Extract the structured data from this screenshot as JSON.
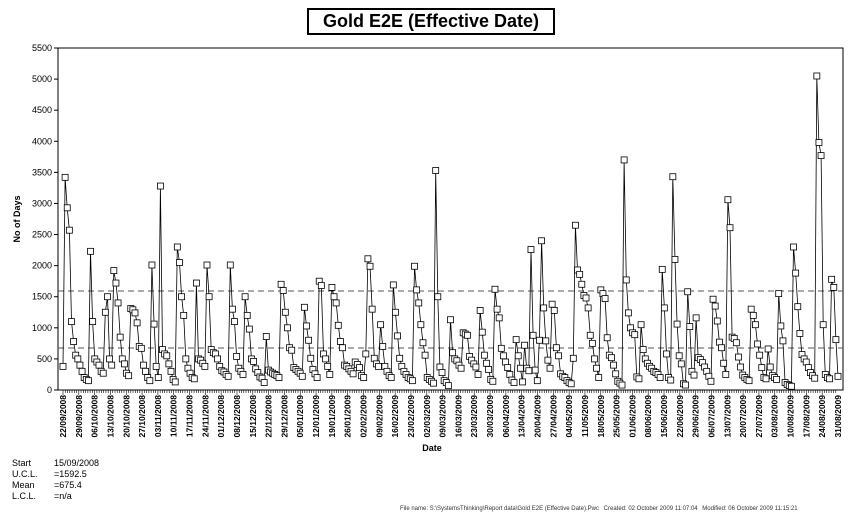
{
  "chart_data": {
    "type": "line",
    "title": "Gold E2E (Effective Date)",
    "xlabel": "Date",
    "ylabel": "No of Days",
    "ylim": [
      0,
      5500
    ],
    "yticks": [
      0,
      500,
      1000,
      1500,
      2000,
      2500,
      3000,
      3500,
      4000,
      4500,
      5000,
      5500
    ],
    "ucl": 1592.5,
    "mean": 675.4,
    "x_tick_labels": [
      "22/09/2008",
      "29/09/2008",
      "06/10/2008",
      "13/10/2008",
      "20/10/2008",
      "27/10/2008",
      "03/11/2008",
      "10/11/2008",
      "17/11/2008",
      "24/11/2008",
      "01/12/2008",
      "08/12/2008",
      "15/12/2008",
      "22/12/2008",
      "29/12/2008",
      "05/01/2009",
      "12/01/2009",
      "19/01/2009",
      "26/01/2009",
      "02/02/2009",
      "09/02/2009",
      "16/02/2009",
      "23/02/2009",
      "02/03/2009",
      "09/03/2009",
      "16/03/2009",
      "23/03/2009",
      "30/03/2009",
      "06/04/2009",
      "13/04/2009",
      "20/04/2009",
      "27/04/2009",
      "04/05/2009",
      "11/05/2009",
      "18/05/2009",
      "25/05/2009",
      "01/06/2009",
      "08/06/2009",
      "15/06/2009",
      "22/06/2009",
      "29/06/2009",
      "06/07/2009",
      "13/07/2009",
      "20/07/2009",
      "27/07/2009",
      "03/08/2009",
      "10/08/2009",
      "17/08/2009",
      "24/08/2009",
      "31/08/2009"
    ],
    "series": [
      {
        "name": "No of Days",
        "values": [
          380,
          3420,
          2930,
          2570,
          1100,
          780,
          560,
          500,
          400,
          300,
          200,
          170,
          150,
          2230,
          1100,
          500,
          450,
          400,
          300,
          270,
          1250,
          1500,
          500,
          400,
          1920,
          1720,
          1400,
          850,
          500,
          420,
          270,
          230,
          1310,
          1290,
          1240,
          1080,
          700,
          670,
          400,
          300,
          200,
          150,
          2010,
          1060,
          380,
          200,
          3280,
          650,
          580,
          550,
          420,
          300,
          170,
          130,
          2300,
          2050,
          1500,
          1200,
          500,
          350,
          270,
          200,
          180,
          1720,
          500,
          480,
          430,
          380,
          2010,
          1500,
          650,
          600,
          580,
          500,
          380,
          310,
          290,
          250,
          220,
          2010,
          1300,
          1100,
          540,
          350,
          300,
          250,
          1500,
          1200,
          980,
          500,
          460,
          340,
          280,
          210,
          190,
          120,
          860,
          320,
          290,
          270,
          250,
          230,
          200,
          1700,
          1600,
          1250,
          1000,
          680,
          640,
          360,
          330,
          300,
          270,
          220,
          1330,
          1030,
          800,
          510,
          330,
          260,
          200,
          1750,
          1680,
          580,
          500,
          380,
          250,
          1650,
          1500,
          1400,
          1040,
          780,
          680,
          400,
          380,
          340,
          300,
          260,
          450,
          410,
          360,
          230,
          200,
          580,
          2110,
          1990,
          1300,
          510,
          420,
          380,
          1050,
          700,
          380,
          300,
          230,
          200,
          1690,
          1250,
          870,
          510,
          380,
          300,
          250,
          200,
          180,
          150,
          1990,
          1610,
          1400,
          1050,
          760,
          560,
          200,
          170,
          140,
          110,
          3530,
          1500,
          370,
          280,
          150,
          120,
          70,
          1130,
          600,
          500,
          470,
          400,
          350,
          920,
          900,
          880,
          540,
          480,
          420,
          370,
          250,
          1280,
          930,
          560,
          430,
          330,
          170,
          140,
          1620,
          1300,
          1160,
          670,
          550,
          450,
          360,
          250,
          160,
          120,
          810,
          550,
          350,
          130,
          720,
          350,
          310,
          2260,
          880,
          320,
          150,
          800,
          2400,
          1320,
          790,
          480,
          350,
          1380,
          1280,
          680,
          550,
          260,
          220,
          200,
          150,
          120,
          100,
          510,
          2650,
          1930,
          1860,
          1700,
          1520,
          1480,
          1320,
          880,
          750,
          500,
          350,
          200,
          1610,
          1550,
          1470,
          840,
          560,
          520,
          400,
          260,
          140,
          110,
          80,
          3700,
          1770,
          1240,
          1000,
          920,
          890,
          210,
          180,
          1050,
          650,
          500,
          430,
          380,
          350,
          300,
          280,
          250,
          200,
          1940,
          1320,
          580,
          200,
          160,
          3430,
          2100,
          1060,
          550,
          420,
          100,
          80,
          1580,
          1020,
          300,
          240,
          1160,
          520,
          490,
          440,
          370,
          300,
          220,
          140,
          1460,
          1350,
          1110,
          770,
          680,
          430,
          250,
          3060,
          2610,
          850,
          830,
          760,
          530,
          370,
          240,
          200,
          170,
          150,
          1300,
          1200,
          1050,
          740,
          560,
          360,
          200,
          180,
          660,
          370,
          230,
          200,
          170,
          1550,
          1030,
          790,
          120,
          90,
          70,
          60,
          2300,
          1880,
          1340,
          910,
          570,
          500,
          450,
          360,
          280,
          230,
          190,
          5050,
          3980,
          3770,
          1050,
          250,
          200,
          180,
          1780,
          1650,
          810,
          220
        ]
      }
    ]
  },
  "stats": {
    "start_label": "Start",
    "start_value": "15/09/2008",
    "ucl_label": "U.C.L.",
    "ucl_value": "=1592.5",
    "mean_label": "Mean",
    "mean_value": "=675.4",
    "lcl_label": "L.C.L.",
    "lcl_value": "=n/a"
  },
  "footer": {
    "file": "File name: S:\\SystemsThinking\\Report data\\Gold E2E (Effective Date).Pwc",
    "created": "Created: 02 October 2009 11:07:04",
    "modified": "Modified: 06 October 2009 11:15:21"
  }
}
